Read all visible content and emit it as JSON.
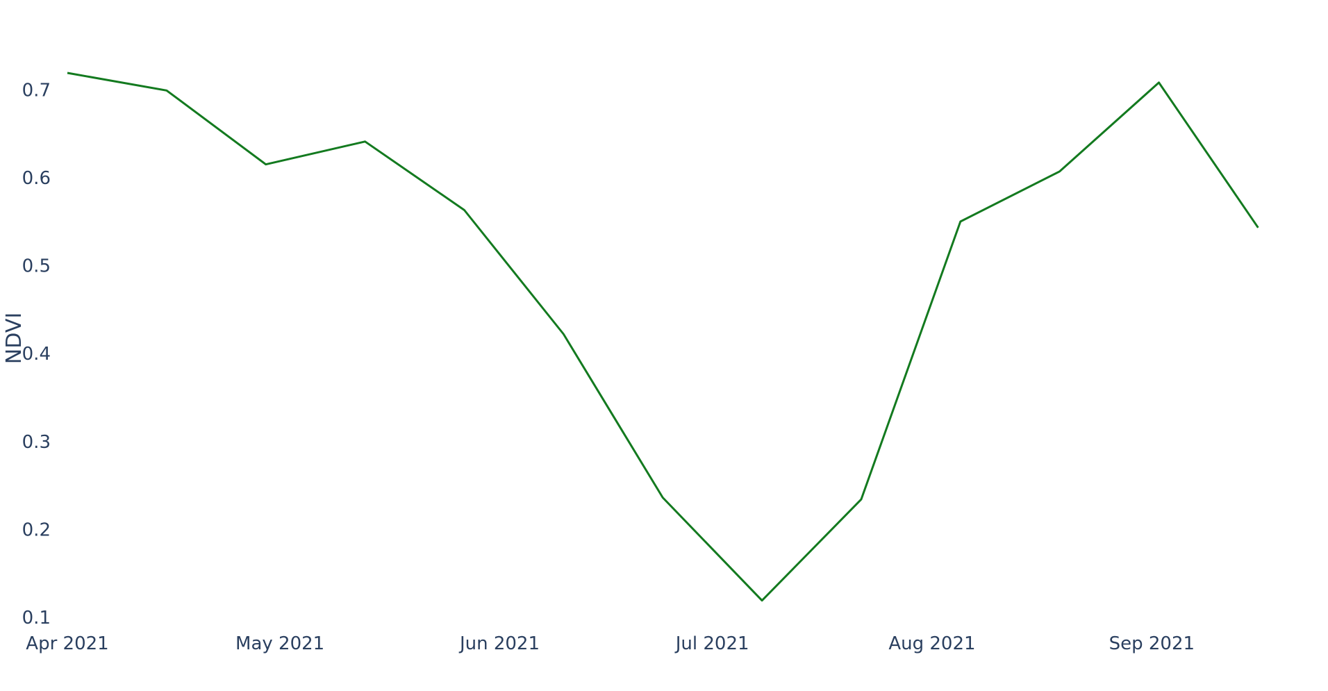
{
  "chart_data": {
    "type": "line",
    "title": "",
    "xlabel": "",
    "ylabel": "NDVI",
    "x_format": "date",
    "xlim": [
      "2021-04-01",
      "2021-09-19"
    ],
    "ylim": [
      0.1,
      0.72
    ],
    "x_ticks": [
      {
        "value": "2021-04-01",
        "label": "Apr 2021"
      },
      {
        "value": "2021-05-01",
        "label": "May 2021"
      },
      {
        "value": "2021-06-01",
        "label": "Jun 2021"
      },
      {
        "value": "2021-07-01",
        "label": "Jul 2021"
      },
      {
        "value": "2021-08-01",
        "label": "Aug 2021"
      },
      {
        "value": "2021-09-01",
        "label": "Sep 2021"
      }
    ],
    "y_ticks": [
      {
        "value": 0.1,
        "label": "0.1"
      },
      {
        "value": 0.2,
        "label": "0.2"
      },
      {
        "value": 0.3,
        "label": "0.3"
      },
      {
        "value": 0.4,
        "label": "0.4"
      },
      {
        "value": 0.5,
        "label": "0.5"
      },
      {
        "value": 0.6,
        "label": "0.6"
      },
      {
        "value": 0.7,
        "label": "0.7"
      }
    ],
    "grid": false,
    "legend": "none",
    "line_color": "#137a1f",
    "series": [
      {
        "x": [
          "2021-04-01",
          "2021-04-15",
          "2021-04-29",
          "2021-05-13",
          "2021-05-27",
          "2021-06-10",
          "2021-06-24",
          "2021-07-08",
          "2021-07-22",
          "2021-08-05",
          "2021-08-19",
          "2021-09-02",
          "2021-09-16"
        ],
        "values": [
          0.72,
          0.7,
          0.616,
          0.642,
          0.564,
          0.423,
          0.237,
          0.12,
          0.235,
          0.551,
          0.608,
          0.709,
          0.544
        ]
      }
    ]
  }
}
